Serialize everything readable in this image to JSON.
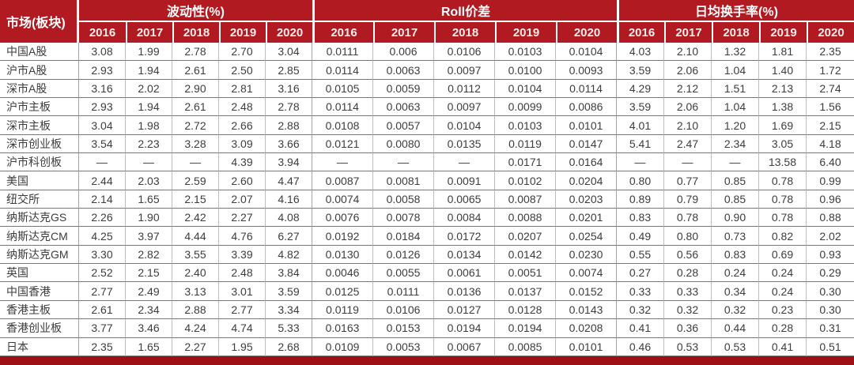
{
  "chart_data": {
    "type": "table",
    "corner_header": "市场(板块)",
    "column_groups": [
      {
        "label": "波动性(%)",
        "years": [
          "2016",
          "2017",
          "2018",
          "2019",
          "2020"
        ]
      },
      {
        "label": "Roll价差",
        "years": [
          "2016",
          "2017",
          "2018",
          "2019",
          "2020"
        ]
      },
      {
        "label": "日均换手率(%)",
        "years": [
          "2016",
          "2017",
          "2018",
          "2019",
          "2020"
        ]
      }
    ],
    "rows": [
      {
        "market": "中国A股",
        "volatility": [
          "3.08",
          "1.99",
          "2.78",
          "2.70",
          "3.04"
        ],
        "roll_spread": [
          "0.0111",
          "0.006",
          "0.0106",
          "0.0103",
          "0.0104"
        ],
        "turnover": [
          "4.03",
          "2.10",
          "1.32",
          "1.81",
          "2.35"
        ]
      },
      {
        "market": "沪市A股",
        "volatility": [
          "2.93",
          "1.94",
          "2.61",
          "2.50",
          "2.85"
        ],
        "roll_spread": [
          "0.0114",
          "0.0063",
          "0.0097",
          "0.0100",
          "0.0093"
        ],
        "turnover": [
          "3.59",
          "2.06",
          "1.04",
          "1.40",
          "1.72"
        ]
      },
      {
        "market": "深市A股",
        "volatility": [
          "3.16",
          "2.02",
          "2.90",
          "2.81",
          "3.16"
        ],
        "roll_spread": [
          "0.0105",
          "0.0059",
          "0.0112",
          "0.0104",
          "0.0114"
        ],
        "turnover": [
          "4.29",
          "2.12",
          "1.51",
          "2.13",
          "2.74"
        ]
      },
      {
        "market": "沪市主板",
        "volatility": [
          "2.93",
          "1.94",
          "2.61",
          "2.48",
          "2.78"
        ],
        "roll_spread": [
          "0.0114",
          "0.0063",
          "0.0097",
          "0.0099",
          "0.0086"
        ],
        "turnover": [
          "3.59",
          "2.06",
          "1.04",
          "1.38",
          "1.56"
        ]
      },
      {
        "market": "深市主板",
        "volatility": [
          "3.04",
          "1.98",
          "2.72",
          "2.66",
          "2.88"
        ],
        "roll_spread": [
          "0.0108",
          "0.0057",
          "0.0104",
          "0.0103",
          "0.0101"
        ],
        "turnover": [
          "4.01",
          "2.10",
          "1.20",
          "1.69",
          "2.15"
        ]
      },
      {
        "market": "深市创业板",
        "volatility": [
          "3.54",
          "2.23",
          "3.28",
          "3.09",
          "3.66"
        ],
        "roll_spread": [
          "0.0121",
          "0.0080",
          "0.0135",
          "0.0119",
          "0.0147"
        ],
        "turnover": [
          "5.41",
          "2.47",
          "2.34",
          "3.05",
          "4.18"
        ]
      },
      {
        "market": "沪市科创板",
        "volatility": [
          "—",
          "—",
          "—",
          "4.39",
          "3.94"
        ],
        "roll_spread": [
          "—",
          "—",
          "—",
          "0.0171",
          "0.0164"
        ],
        "turnover": [
          "—",
          "—",
          "—",
          "13.58",
          "6.40"
        ]
      },
      {
        "market": "美国",
        "volatility": [
          "2.44",
          "2.03",
          "2.59",
          "2.60",
          "4.47"
        ],
        "roll_spread": [
          "0.0087",
          "0.0081",
          "0.0091",
          "0.0102",
          "0.0204"
        ],
        "turnover": [
          "0.80",
          "0.77",
          "0.85",
          "0.78",
          "0.99"
        ]
      },
      {
        "market": "纽交所",
        "volatility": [
          "2.14",
          "1.65",
          "2.15",
          "2.07",
          "4.16"
        ],
        "roll_spread": [
          "0.0074",
          "0.0058",
          "0.0065",
          "0.0087",
          "0.0203"
        ],
        "turnover": [
          "0.89",
          "0.79",
          "0.85",
          "0.78",
          "0.96"
        ]
      },
      {
        "market": "纳斯达克GS",
        "volatility": [
          "2.26",
          "1.90",
          "2.42",
          "2.27",
          "4.08"
        ],
        "roll_spread": [
          "0.0076",
          "0.0078",
          "0.0084",
          "0.0088",
          "0.0201"
        ],
        "turnover": [
          "0.83",
          "0.78",
          "0.90",
          "0.78",
          "0.88"
        ]
      },
      {
        "market": "纳斯达克CM",
        "volatility": [
          "4.25",
          "3.97",
          "4.44",
          "4.76",
          "6.27"
        ],
        "roll_spread": [
          "0.0192",
          "0.0184",
          "0.0172",
          "0.0207",
          "0.0254"
        ],
        "turnover": [
          "0.49",
          "0.80",
          "0.73",
          "0.82",
          "2.02"
        ]
      },
      {
        "market": "纳斯达克GM",
        "volatility": [
          "3.30",
          "2.82",
          "3.55",
          "3.39",
          "4.82"
        ],
        "roll_spread": [
          "0.0130",
          "0.0126",
          "0.0134",
          "0.0142",
          "0.0230"
        ],
        "turnover": [
          "0.55",
          "0.56",
          "0.83",
          "0.69",
          "0.93"
        ]
      },
      {
        "market": "英国",
        "volatility": [
          "2.52",
          "2.15",
          "2.40",
          "2.48",
          "3.84"
        ],
        "roll_spread": [
          "0.0046",
          "0.0055",
          "0.0061",
          "0.0051",
          "0.0074"
        ],
        "turnover": [
          "0.27",
          "0.28",
          "0.24",
          "0.24",
          "0.29"
        ]
      },
      {
        "market": "中国香港",
        "volatility": [
          "2.77",
          "2.49",
          "3.13",
          "3.01",
          "3.59"
        ],
        "roll_spread": [
          "0.0125",
          "0.0111",
          "0.0136",
          "0.0137",
          "0.0152"
        ],
        "turnover": [
          "0.33",
          "0.33",
          "0.34",
          "0.24",
          "0.30"
        ]
      },
      {
        "market": "香港主板",
        "volatility": [
          "2.61",
          "2.34",
          "2.88",
          "2.77",
          "3.34"
        ],
        "roll_spread": [
          "0.0119",
          "0.0106",
          "0.0127",
          "0.0128",
          "0.0143"
        ],
        "turnover": [
          "0.32",
          "0.32",
          "0.32",
          "0.23",
          "0.30"
        ]
      },
      {
        "market": "香港创业板",
        "volatility": [
          "3.77",
          "3.46",
          "4.24",
          "4.74",
          "5.33"
        ],
        "roll_spread": [
          "0.0163",
          "0.0153",
          "0.0194",
          "0.0194",
          "0.0208"
        ],
        "turnover": [
          "0.41",
          "0.36",
          "0.44",
          "0.28",
          "0.31"
        ]
      },
      {
        "market": "日本",
        "volatility": [
          "2.35",
          "1.65",
          "2.27",
          "1.95",
          "2.68"
        ],
        "roll_spread": [
          "0.0109",
          "0.0053",
          "0.0067",
          "0.0085",
          "0.0101"
        ],
        "turnover": [
          "0.46",
          "0.53",
          "0.53",
          "0.41",
          "0.51"
        ]
      }
    ]
  },
  "colors": {
    "header_red": "#b01a20",
    "bottom_bar_red": "#9e1016",
    "row_line_gray": "#777777",
    "column_line_gray": "#bdbdbd",
    "text_dark": "#3d3d3d",
    "header_text": "#ffffff"
  }
}
